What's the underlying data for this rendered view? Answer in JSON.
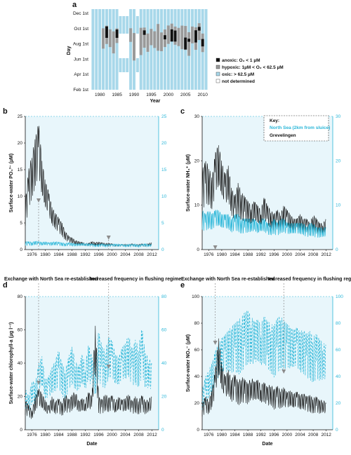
{
  "panels": {
    "a": "a",
    "b": "b",
    "c": "c",
    "d": "d",
    "e": "e"
  },
  "annotations": {
    "exchange": "Exchange with North Sea re-established",
    "flushing": "Increased frequency in flushing regime"
  },
  "panel_a": {
    "ylabel": "Day",
    "xlabel": "Year",
    "yticks": [
      "Dec 1st",
      "Oct 1st",
      "Aug 1st",
      "Jun 1st",
      "Apr 1st",
      "Feb 1st"
    ],
    "xticks": [
      "1980",
      "1985",
      "1990",
      "1995",
      "2000",
      "2005",
      "2010"
    ],
    "legend": [
      {
        "label": "anoxic: O₂ < 1 µM",
        "color": "#111111"
      },
      {
        "label": "hypoxic: 1µM < O₂ < 62.5 µM",
        "color": "#9a9a9a"
      },
      {
        "label": "oxic: > 62.5 µM",
        "color": "#a8d8ea"
      },
      {
        "label": "not determined",
        "color": "#ffffff"
      }
    ]
  },
  "time_xticks": [
    "1976",
    "1980",
    "1984",
    "1988",
    "1992",
    "1996",
    "2000",
    "2004",
    "2008",
    "2012"
  ],
  "legend_c": {
    "title": "Key:",
    "items": [
      {
        "label": "North Sea (2km from sluice)",
        "color": "#29b6d8"
      },
      {
        "label": "Grevelingen",
        "color": "#111111"
      }
    ]
  },
  "colors": {
    "black": "#111111",
    "cyan": "#29b6d8",
    "oxic": "#a8d8ea",
    "bg": "#e8f6fb",
    "arrow": "#8c8c8c"
  },
  "chart_data": [
    {
      "id": "a",
      "type": "heatmap",
      "x_range": [
        1978,
        2011
      ],
      "y_categories": [
        "Feb 1st",
        "Apr 1st",
        "Jun 1st",
        "Aug 1st",
        "Oct 1st",
        "Dec 1st"
      ],
      "states": [
        "anoxic",
        "hypoxic",
        "oxic",
        "not determined"
      ],
      "note": "seasonal oxygen state per year"
    },
    {
      "id": "b",
      "type": "line",
      "ylabel": "Surface-water PO₄³⁻ (µM)",
      "xlabel": "",
      "ylim": [
        0,
        25
      ],
      "y2lim": [
        0,
        25
      ],
      "yticks": [
        0,
        5,
        10,
        15,
        20,
        25
      ],
      "series": [
        {
          "name": "Grevelingen",
          "values": [
            9,
            15,
            18,
            21,
            24,
            17,
            13,
            11,
            8,
            7,
            6,
            5,
            3.5,
            2.5,
            2.2,
            1.8,
            1.5,
            1.4,
            1.2,
            1.2,
            1.5,
            1.4,
            1.4,
            1.3,
            1.2,
            1.2,
            1.1,
            1.0,
            1.0,
            1.0,
            1.0,
            1.0,
            1.1,
            1.0,
            1.0,
            1.1,
            1.0,
            1.2,
            1.3
          ]
        },
        {
          "name": "North Sea (2km from sluice)",
          "values": [
            1.5,
            1.5,
            1.4,
            1.6,
            1.5,
            1.4,
            1.5,
            1.3,
            1.4,
            1.5,
            1.4,
            1.3,
            1.2,
            1.3,
            1.2,
            1.2,
            1.1,
            1.2,
            1.2,
            1.1,
            1.1,
            1.0,
            1.0,
            1.1,
            1.0,
            1.0,
            1.0,
            1.1,
            1.0,
            1.0,
            0.9,
            1.0,
            1.0,
            1.0,
            0.9,
            1.0,
            1.1,
            1.0,
            1.0
          ]
        }
      ],
      "x": [
        1974,
        1975,
        1976,
        1977,
        1978,
        1979,
        1980,
        1981,
        1982,
        1983,
        1984,
        1985,
        1986,
        1987,
        1988,
        1989,
        1990,
        1991,
        1992,
        1993,
        1994,
        1995,
        1996,
        1997,
        1998,
        1999,
        2000,
        2001,
        2002,
        2003,
        2004,
        2005,
        2006,
        2007,
        2008,
        2009,
        2010,
        2011,
        2012
      ]
    },
    {
      "id": "c",
      "type": "line",
      "ylabel": "Surface-water NH₄⁺ (µM)",
      "xlabel": "",
      "ylim": [
        0,
        30
      ],
      "y2lim": [
        0,
        30
      ],
      "yticks": [
        0,
        10,
        20,
        30
      ],
      "series": [
        {
          "name": "Grevelingen",
          "values": [
            18,
            20,
            19,
            16,
            22,
            24,
            20,
            17,
            19,
            14,
            12,
            15,
            13,
            12,
            11,
            10,
            11,
            10,
            9,
            12,
            10,
            9,
            8,
            9,
            8,
            10,
            9,
            8,
            7,
            7,
            8,
            7,
            7,
            6,
            8,
            7,
            6,
            6,
            7
          ]
        },
        {
          "name": "North Sea (2km from sluice)",
          "values": [
            9,
            8,
            9,
            8,
            9,
            9,
            8,
            8,
            8,
            7,
            8,
            8,
            7,
            7,
            7,
            7,
            7,
            6,
            7,
            7,
            6,
            6,
            7,
            6,
            7,
            7,
            6,
            6,
            6,
            6,
            6,
            6,
            5,
            6,
            6,
            5,
            5,
            5,
            5
          ]
        }
      ],
      "x": [
        1974,
        1975,
        1976,
        1977,
        1978,
        1979,
        1980,
        1981,
        1982,
        1983,
        1984,
        1985,
        1986,
        1987,
        1988,
        1989,
        1990,
        1991,
        1992,
        1993,
        1994,
        1995,
        1996,
        1997,
        1998,
        1999,
        2000,
        2001,
        2002,
        2003,
        2004,
        2005,
        2006,
        2007,
        2008,
        2009,
        2010,
        2011,
        2012
      ]
    },
    {
      "id": "d",
      "type": "line",
      "ylabel": "Surface-water chlorophyll-a (µg l⁻¹)",
      "xlabel": "Date",
      "ylim": [
        0,
        80
      ],
      "y2lim": [
        0,
        80
      ],
      "yticks": [
        0,
        20,
        40,
        60,
        80
      ],
      "series": [
        {
          "name": "Grevelingen",
          "values": [
            18,
            15,
            12,
            20,
            25,
            22,
            18,
            14,
            20,
            17,
            19,
            16,
            22,
            18,
            21,
            24,
            17,
            19,
            18,
            23,
            20,
            68,
            20,
            18,
            22,
            19,
            21,
            17,
            20,
            18,
            19,
            22,
            17,
            20,
            18,
            21,
            17,
            19,
            20
          ]
        },
        {
          "name": "North Sea (2km from sluice)",
          "values": [
            25,
            20,
            30,
            28,
            40,
            45,
            30,
            32,
            38,
            42,
            48,
            40,
            36,
            44,
            50,
            42,
            38,
            46,
            40,
            52,
            44,
            38,
            60,
            50,
            48,
            56,
            54,
            46,
            44,
            50,
            52,
            58,
            48,
            54,
            50,
            62,
            46,
            44,
            40
          ]
        }
      ],
      "x": [
        1974,
        1975,
        1976,
        1977,
        1978,
        1979,
        1980,
        1981,
        1982,
        1983,
        1984,
        1985,
        1986,
        1987,
        1988,
        1989,
        1990,
        1991,
        1992,
        1993,
        1994,
        1995,
        1996,
        1997,
        1998,
        1999,
        2000,
        2001,
        2002,
        2003,
        2004,
        2005,
        2006,
        2007,
        2008,
        2009,
        2010,
        2011,
        2012
      ]
    },
    {
      "id": "e",
      "type": "line",
      "ylabel": "Surface-water NO₃⁻ (µM)",
      "xlabel": "Date",
      "ylim": [
        0,
        100
      ],
      "y2lim": [
        0,
        100
      ],
      "yticks": [
        0,
        20,
        40,
        60,
        80,
        100
      ],
      "series": [
        {
          "name": "Grevelingen",
          "values": [
            20,
            25,
            22,
            30,
            45,
            70,
            50,
            40,
            45,
            38,
            42,
            36,
            40,
            38,
            35,
            40,
            36,
            38,
            34,
            36,
            32,
            35,
            30,
            33,
            30,
            32,
            28,
            30,
            27,
            29,
            26,
            28,
            25,
            26,
            24,
            25,
            22,
            23,
            20
          ]
        },
        {
          "name": "North Sea (2km from sluice)",
          "values": [
            30,
            40,
            45,
            50,
            60,
            65,
            70,
            72,
            75,
            78,
            80,
            82,
            85,
            88,
            90,
            86,
            82,
            84,
            80,
            86,
            82,
            80,
            78,
            84,
            86,
            82,
            80,
            78,
            76,
            78,
            74,
            76,
            72,
            74,
            70,
            72,
            68,
            66,
            64
          ]
        }
      ],
      "x": [
        1974,
        1975,
        1976,
        1977,
        1978,
        1979,
        1980,
        1981,
        1982,
        1983,
        1984,
        1985,
        1986,
        1987,
        1988,
        1989,
        1990,
        1991,
        1992,
        1993,
        1994,
        1995,
        1996,
        1997,
        1998,
        1999,
        2000,
        2001,
        2002,
        2003,
        2004,
        2005,
        2006,
        2007,
        2008,
        2009,
        2010,
        2011,
        2012
      ]
    }
  ]
}
